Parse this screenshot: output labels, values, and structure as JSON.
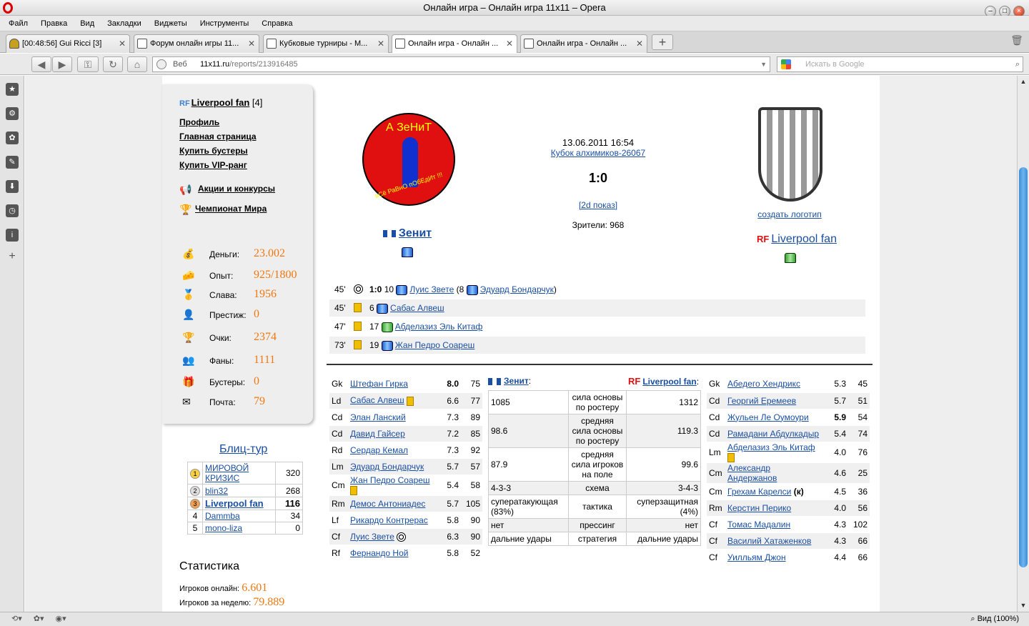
{
  "window": {
    "title": "Онлайн игра – Онлайн игра 11x11 – Opera"
  },
  "menu": [
    "Файл",
    "Правка",
    "Вид",
    "Закладки",
    "Виджеты",
    "Инструменты",
    "Справка"
  ],
  "tabs": [
    {
      "label": "[00:48:56] Gui Ricci [3]"
    },
    {
      "label": "Форум онлайн игры 11..."
    },
    {
      "label": "Кубковые турниры - М..."
    },
    {
      "label": "Онлайн игра - Онлайн ..."
    },
    {
      "label": "Онлайн игра - Онлайн ..."
    }
  ],
  "address": {
    "prefix": "Веб",
    "host": "11x11.ru",
    "path": "/reports/213916485",
    "search_placeholder": "Искать в Google"
  },
  "statusbar": {
    "zoom": "Вид (100%)"
  },
  "profile": {
    "user": "Liverpool fan",
    "badge": "RF",
    "level": "[4]",
    "links": [
      "Профиль",
      "Главная страница",
      "Купить бустеры",
      "Купить VIP-ранг"
    ],
    "promo": [
      "Акции и конкурсы",
      "Чемпионат Мира"
    ],
    "stats": [
      {
        "label": "Деньги:",
        "value": "23.002",
        "icon": "money-bag-icon"
      },
      {
        "label": "Опыт:",
        "value": "925/1800",
        "icon": "cheese-icon"
      },
      {
        "label": "Слава:",
        "value": "1956",
        "icon": "podium-icon"
      },
      {
        "label": "Престиж:",
        "value": "0",
        "icon": "person-icon"
      },
      {
        "label": "Очки:",
        "value": "2374",
        "icon": "trophy-icon"
      },
      {
        "label": "Фаны:",
        "value": "1111",
        "icon": "fans-icon"
      },
      {
        "label": "Бустеры:",
        "value": "0",
        "icon": "gift-icon"
      },
      {
        "label": "Почта:",
        "value": "79",
        "icon": "envelope-icon"
      }
    ]
  },
  "blitz": {
    "title": "Блиц-тур",
    "rows": [
      {
        "n": "1",
        "name": "МИРОВОЙ КРИЗИС",
        "v": "320"
      },
      {
        "n": "2",
        "name": "blin32",
        "v": "268"
      },
      {
        "n": "3",
        "name": "Liverpool fan",
        "v": "116"
      },
      {
        "n": "4",
        "name": "Dammba",
        "v": "34"
      },
      {
        "n": "5",
        "name": "mono-liza",
        "v": "0"
      }
    ]
  },
  "site_stats": {
    "title": "Статистика",
    "online_label": "Игроков онлайн:",
    "online": "6.601",
    "week_label": "Игроков за неделю:",
    "week": "79.889"
  },
  "match": {
    "date": "13.06.2011 16:54",
    "cup": "Кубок алхимиков-26067",
    "score": "1:0",
    "show2d": "[2d показ]",
    "spectators": "Зрители: 968",
    "team1": {
      "name": "Зенит",
      "logo_top": "А ЗеНиТ",
      "logo_bottom": "вСё РаВнО пОбЕдИт !!!"
    },
    "team2": {
      "name": "Liverpool fan",
      "badge": "RF",
      "create_logo": "создать логотип"
    }
  },
  "events": [
    {
      "min": "45'",
      "type": "goal",
      "text_score": "1:0",
      "num": "10",
      "player": "Луис Звете",
      "assist_prefix": "(8",
      "assist": "Эдуард Бондарчук",
      "assist_suffix": ")",
      "team": "b"
    },
    {
      "min": "45'",
      "type": "yellow",
      "num": "6",
      "player": "Сабас Алвеш",
      "team": "b"
    },
    {
      "min": "47'",
      "type": "yellow",
      "num": "17",
      "player": "Абделазиз Эль Китаф",
      "team": "g"
    },
    {
      "min": "73'",
      "type": "yellow",
      "num": "19",
      "player": "Жан Педро Соареш",
      "team": "b"
    }
  ],
  "lineup1": [
    {
      "pos": "Gk",
      "name": "Штефан Гирка",
      "rat": "8.0",
      "num": "75",
      "bold": true
    },
    {
      "pos": "Ld",
      "name": "Сабас Алвеш",
      "rat": "6.6",
      "num": "77",
      "yc": true
    },
    {
      "pos": "Cd",
      "name": "Элан Ланский",
      "rat": "7.3",
      "num": "89"
    },
    {
      "pos": "Cd",
      "name": "Давид Гайсер",
      "rat": "7.2",
      "num": "85"
    },
    {
      "pos": "Rd",
      "name": "Сердар Кемал",
      "rat": "7.3",
      "num": "92"
    },
    {
      "pos": "Lm",
      "name": "Эдуард Бондарчук",
      "rat": "5.7",
      "num": "57"
    },
    {
      "pos": "Cm",
      "name": "Жан Педро Соареш",
      "rat": "5.4",
      "num": "58",
      "yc": true
    },
    {
      "pos": "Rm",
      "name": "Демос Антониадес",
      "rat": "5.7",
      "num": "105"
    },
    {
      "pos": "Lf",
      "name": "Рикардо Контрерас",
      "rat": "5.8",
      "num": "90"
    },
    {
      "pos": "Cf",
      "name": "Луис Звете",
      "rat": "6.3",
      "num": "90",
      "ball": true
    },
    {
      "pos": "Rf",
      "name": "Фернандо Ной",
      "rat": "5.8",
      "num": "52"
    }
  ],
  "lineup2": [
    {
      "pos": "Gk",
      "name": "Абедего Хендрикс",
      "rat": "5.3",
      "num": "45"
    },
    {
      "pos": "Cd",
      "name": "Георгий Еремеев",
      "rat": "5.7",
      "num": "51"
    },
    {
      "pos": "Cd",
      "name": "Жульен Ле Оумоури",
      "rat": "5.9",
      "num": "54",
      "bold": true
    },
    {
      "pos": "Cd",
      "name": "Рамадани Абдулкадыр",
      "rat": "5.4",
      "num": "74"
    },
    {
      "pos": "Lm",
      "name": "Абделазиз Эль Китаф",
      "rat": "4.0",
      "num": "76",
      "yc": true
    },
    {
      "pos": "Cm",
      "name": "Александр Андержанов",
      "rat": "4.6",
      "num": "25"
    },
    {
      "pos": "Cm",
      "name": "Грехам Карелси",
      "suffix": "(к)",
      "rat": "4.5",
      "num": "36"
    },
    {
      "pos": "Rm",
      "name": "Керстин Перико",
      "rat": "4.0",
      "num": "56"
    },
    {
      "pos": "Cf",
      "name": "Томас Мадалин",
      "rat": "4.3",
      "num": "102"
    },
    {
      "pos": "Cf",
      "name": "Василий Хатаженков",
      "rat": "4.3",
      "num": "66"
    },
    {
      "pos": "Cf",
      "name": "Уилльям Джон",
      "rat": "4.4",
      "num": "66"
    }
  ],
  "compare": {
    "team1": "Зенит",
    "team2": "Liverpool fan",
    "rows": [
      {
        "a": "1085",
        "m": "сила основы по ростеру",
        "b": "1312"
      },
      {
        "a": "98.6",
        "m": "средняя сила основы по ростеру",
        "b": "119.3"
      },
      {
        "a": "87.9",
        "m": "средняя сила игроков на поле",
        "b": "99.6"
      },
      {
        "a": "4-3-3",
        "m": "схема",
        "b": "3-4-3"
      },
      {
        "a": "суператакующая (83%)",
        "m": "тактика",
        "b": "суперзащитная (4%)"
      },
      {
        "a": "нет",
        "m": "прессинг",
        "b": "нет"
      },
      {
        "a": "дальние удары",
        "m": "стратегия",
        "b": "дальние удары"
      }
    ]
  }
}
